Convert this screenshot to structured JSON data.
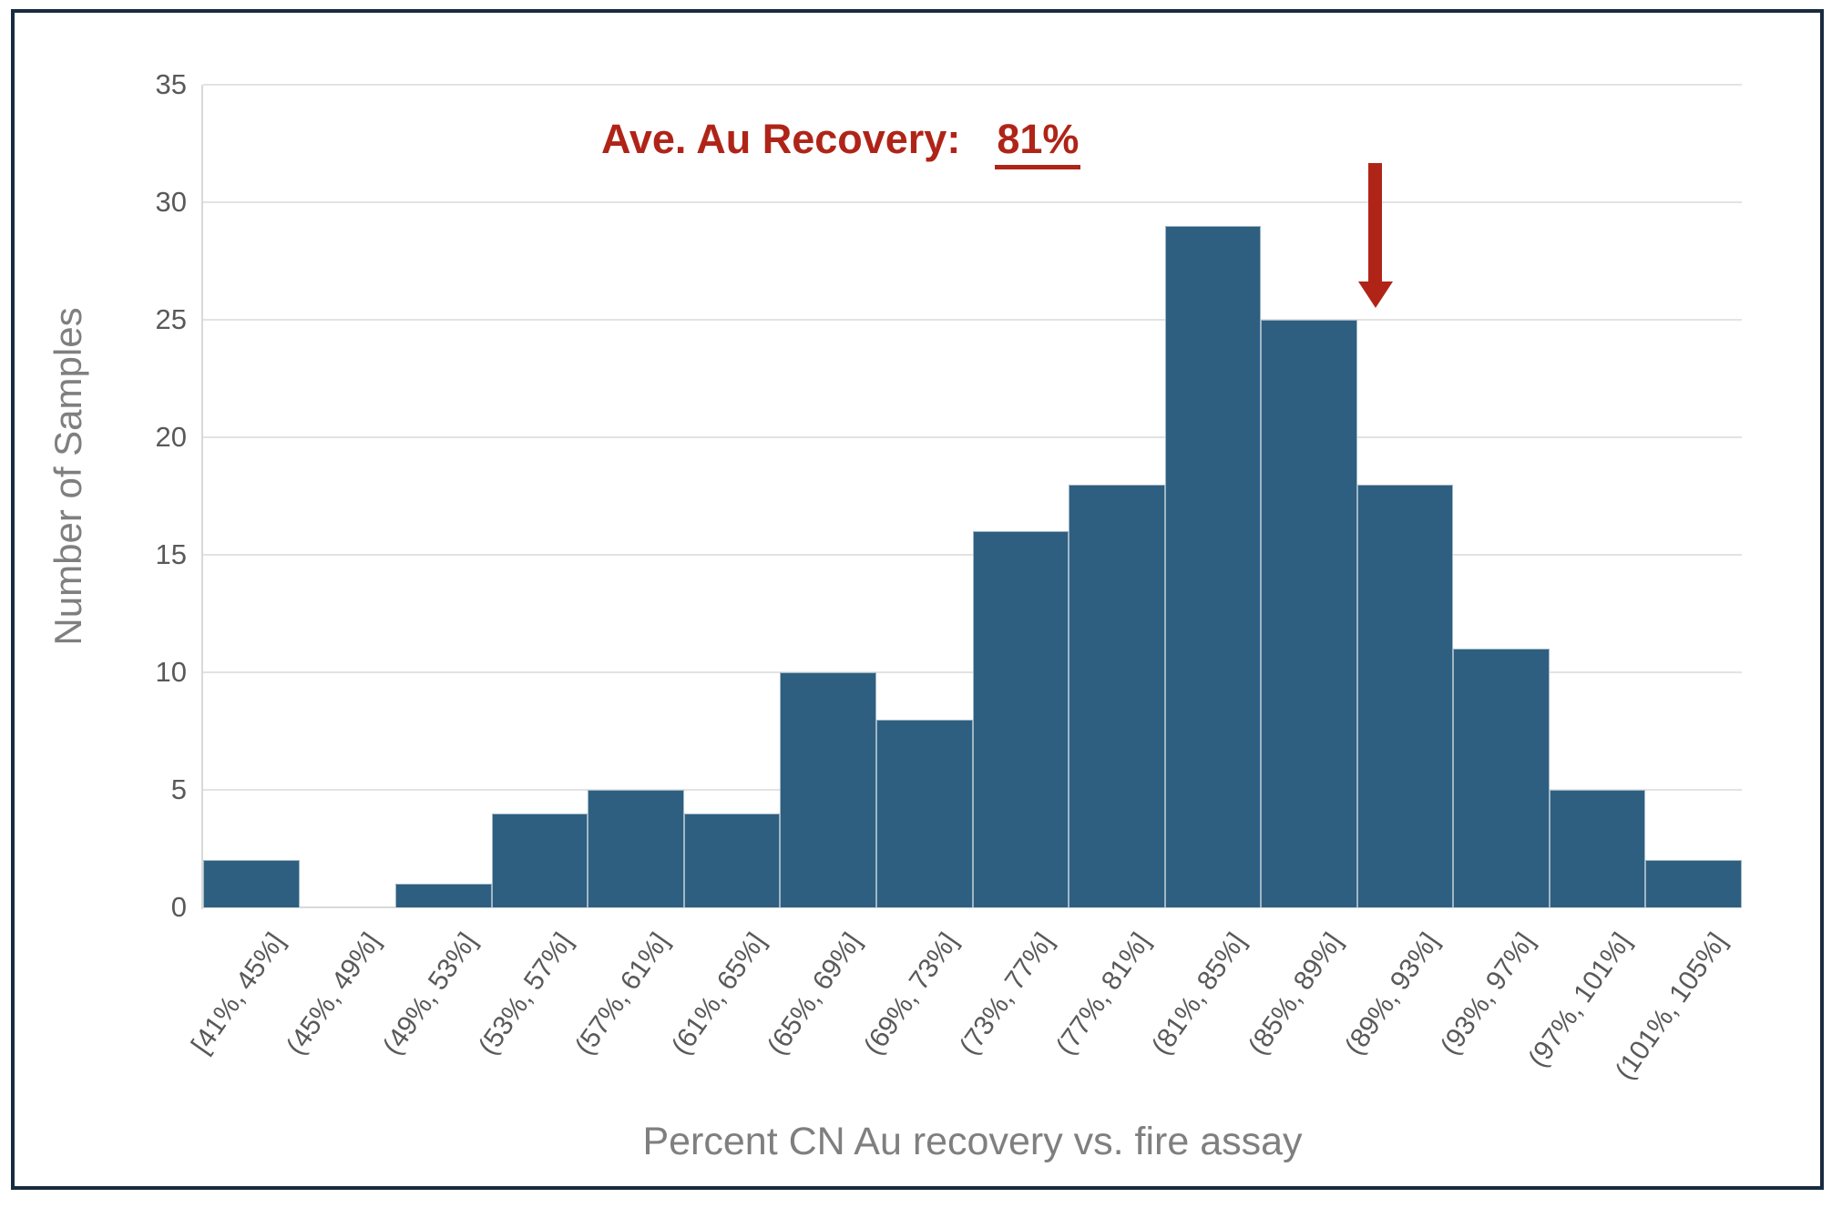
{
  "chart_data": {
    "type": "bar",
    "subtype": "histogram",
    "title": "",
    "categories": [
      "[41%, 45%]",
      "(45%, 49%]",
      "(49%, 53%]",
      "(53%, 57%]",
      "(57%, 61%]",
      "(61%, 65%]",
      "(65%, 69%]",
      "(69%, 73%]",
      "(73%, 77%]",
      "(77%, 81%]",
      "(81%, 85%]",
      "(85%, 89%]",
      "(89%, 93%]",
      "(93%, 97%]",
      "(97%, 101%]",
      "(101%, 105%]"
    ],
    "values": [
      2,
      0,
      1,
      4,
      5,
      4,
      10,
      8,
      16,
      18,
      29,
      25,
      18,
      11,
      5,
      2
    ],
    "xlabel": "Percent CN Au recovery vs. fire assay",
    "ylabel": "Number of Samples",
    "ylim": [
      0,
      35
    ],
    "y_ticks": [
      "0",
      "5",
      "10",
      "15",
      "20",
      "25",
      "30",
      "35"
    ],
    "grid": "horizontal",
    "legend": "none",
    "annotation": {
      "label": "Ave. Au Recovery:",
      "value": "81%",
      "arrow_points_to_category": "(81%, 85%]"
    },
    "colors": {
      "bar_fill": "#2E5F80",
      "annotation_red": "#B02418",
      "gridline": "#E3E3E3",
      "axis_line": "#D9D9D9",
      "tick_text": "#595959",
      "axis_title_text": "#7F7F7F",
      "frame_border": "#182B40"
    }
  }
}
